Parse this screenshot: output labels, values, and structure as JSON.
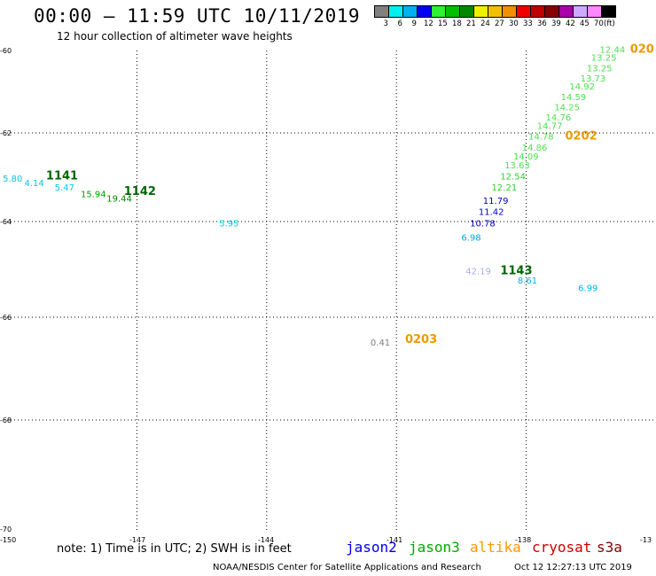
{
  "title": "00:00 – 11:59 UTC 10/11/2019",
  "subtitle": "12 hour collection of altimeter wave heights",
  "colorbar": {
    "colors": [
      "#808080",
      "#00f0f0",
      "#00b0f0",
      "#0000f0",
      "#30f030",
      "#00c000",
      "#008800",
      "#f0f000",
      "#f0c000",
      "#f09000",
      "#f00000",
      "#c00000",
      "#880000",
      "#aa00aa",
      "#ccaaff",
      "#ff88ff",
      "#000000"
    ],
    "ticks": [
      "3",
      "6",
      "9",
      "12",
      "15",
      "18",
      "21",
      "24",
      "27",
      "30",
      "33",
      "36",
      "39",
      "42",
      "45",
      "70",
      "(ft)"
    ]
  },
  "axes": {
    "lat_ticks": [
      "-60",
      "-62",
      "-64",
      "-66",
      "-68",
      "-70"
    ],
    "lon_ticks": [
      "-150",
      "-147",
      "-144",
      "-141",
      "-138",
      "-13"
    ]
  },
  "chart_data": {
    "type": "scatter",
    "lat_range": [
      -70,
      -60
    ],
    "lon_range": [
      -150,
      -135
    ],
    "time_labels": [
      {
        "label": "1141",
        "lon": -149.1,
        "lat": -63.05,
        "color": "#006600"
      },
      {
        "label": "1142",
        "lon": -147.3,
        "lat": -63.4,
        "color": "#006600"
      },
      {
        "label": "1143",
        "lon": -138.6,
        "lat": -65.1,
        "color": "#006600"
      },
      {
        "label": "0202",
        "lon": -137.1,
        "lat": -62.15,
        "color": "#ee9900"
      },
      {
        "label": "0203",
        "lon": -140.8,
        "lat": -66.5,
        "color": "#ee9900"
      },
      {
        "label": "020",
        "lon": -135.6,
        "lat": -60.05,
        "color": "#ee9900"
      }
    ],
    "points": [
      {
        "v": "5.80",
        "lon": -150.1,
        "lat": -63.1,
        "color": "#00c8e8"
      },
      {
        "v": "4.14",
        "lon": -149.6,
        "lat": -63.2,
        "color": "#00c8e8"
      },
      {
        "v": "5.47",
        "lon": -148.9,
        "lat": -63.3,
        "color": "#00c8e8"
      },
      {
        "v": "15.94",
        "lon": -148.3,
        "lat": -63.45,
        "color": "#00a000"
      },
      {
        "v": "19.44",
        "lon": -147.7,
        "lat": -63.55,
        "color": "#008800"
      },
      {
        "v": "5.95",
        "lon": -145.1,
        "lat": -64.1,
        "color": "#00c8e8"
      },
      {
        "v": "0.41",
        "lon": -141.6,
        "lat": -66.55,
        "color": "#808080"
      },
      {
        "v": "6.98",
        "lon": -139.5,
        "lat": -64.4,
        "color": "#00a8e8"
      },
      {
        "v": "10.78",
        "lon": -139.3,
        "lat": -64.1,
        "color": "#0000c0"
      },
      {
        "v": "11.42",
        "lon": -139.1,
        "lat": -63.85,
        "color": "#0000c0"
      },
      {
        "v": "11.79",
        "lon": -139.0,
        "lat": -63.6,
        "color": "#0000c0"
      },
      {
        "v": "12.21",
        "lon": -138.8,
        "lat": -63.3,
        "color": "#30d030"
      },
      {
        "v": "12.54",
        "lon": -138.6,
        "lat": -63.05,
        "color": "#30d030"
      },
      {
        "v": "13.63",
        "lon": -138.5,
        "lat": -62.8,
        "color": "#50e050"
      },
      {
        "v": "14.09",
        "lon": -138.3,
        "lat": -62.6,
        "color": "#50e050"
      },
      {
        "v": "14.86",
        "lon": -138.1,
        "lat": -62.4,
        "color": "#50e050"
      },
      {
        "v": "14.78",
        "lon": -137.95,
        "lat": -62.15,
        "color": "#50e050"
      },
      {
        "v": "14.77",
        "lon": -137.75,
        "lat": -61.9,
        "color": "#50e050"
      },
      {
        "v": "14.76",
        "lon": -137.55,
        "lat": -61.7,
        "color": "#50e050"
      },
      {
        "v": "14.25",
        "lon": -137.35,
        "lat": -61.45,
        "color": "#50e050"
      },
      {
        "v": "14.59",
        "lon": -137.2,
        "lat": -61.2,
        "color": "#50e050"
      },
      {
        "v": "14.92",
        "lon": -137.0,
        "lat": -60.95,
        "color": "#50e050"
      },
      {
        "v": "13.73",
        "lon": -136.75,
        "lat": -60.75,
        "color": "#50e050"
      },
      {
        "v": "13.25",
        "lon": -136.6,
        "lat": -60.5,
        "color": "#50e050"
      },
      {
        "v": "13.25",
        "lon": -136.5,
        "lat": -60.25,
        "color": "#50e050"
      },
      {
        "v": "12.44",
        "lon": -136.3,
        "lat": -60.05,
        "color": "#50e050"
      },
      {
        "v": "42.19",
        "lon": -139.4,
        "lat": -65.1,
        "color": "#aaaaee"
      },
      {
        "v": "8.61",
        "lon": -138.2,
        "lat": -65.3,
        "color": "#00b0e8"
      },
      {
        "v": "6.99",
        "lon": -136.8,
        "lat": -65.45,
        "color": "#00b0e8"
      }
    ]
  },
  "note": "note: 1) Time is in UTC; 2) SWH is in feet",
  "satellites": [
    {
      "name": "jason2",
      "color": "#0000ee"
    },
    {
      "name": "jason3",
      "color": "#00aa00"
    },
    {
      "name": "altika",
      "color": "#ff9900"
    },
    {
      "name": "cryosat",
      "color": "#cc0000"
    },
    {
      "name": "s3a",
      "color": "#880000"
    }
  ],
  "credit": "NOAA/NESDIS Center for Satellite Applications and Research",
  "timestamp": "Oct 12 12:27:13 UTC 2019"
}
